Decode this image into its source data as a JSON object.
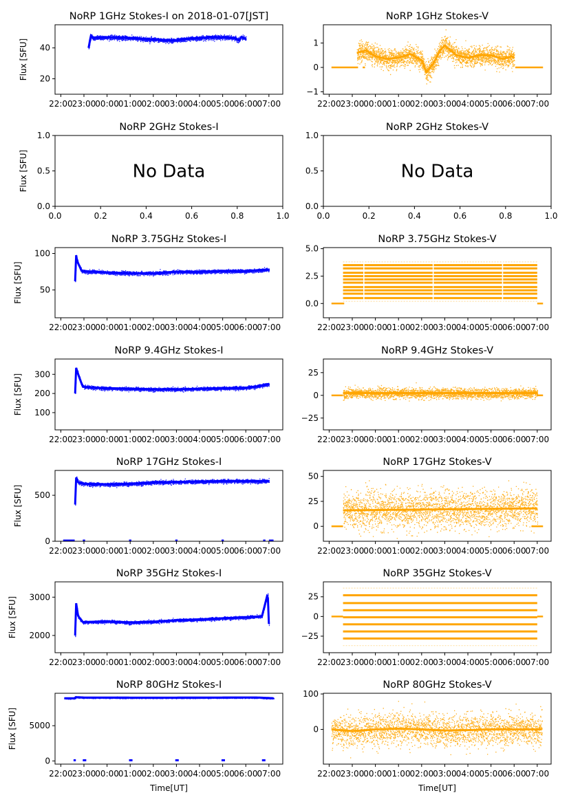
{
  "figure": {
    "xlabel_bottom": "Time[UT]",
    "colors": {
      "stokes_i": "#0000ff",
      "stokes_v": "#ffa500",
      "axes": "#000000"
    }
  },
  "chart_data": [
    {
      "id": "1ghz-i",
      "type": "scatter",
      "title": "NoRP 1GHz Stokes-I on 2018-01-07[JST]",
      "ylabel": "Flux [SFU]",
      "ylim": [
        10,
        55
      ],
      "yticks": [
        20,
        40
      ],
      "ytick_labels": [
        "20",
        "40"
      ],
      "x_ticks": [
        "22:00",
        "23:00",
        "00:00",
        "01:00",
        "02:00",
        "03:00",
        "04:00",
        "05:00",
        "06:00",
        "07:00"
      ],
      "xlim_hours": [
        -0.25,
        9.6
      ],
      "series": [
        {
          "name": "Stokes-I",
          "color": "#0000ff",
          "x_hours": [
            1.2,
            1.3,
            1.4,
            2,
            3,
            3.5,
            4,
            4.5,
            5,
            5.5,
            6,
            6.5,
            7,
            7.5,
            7.7,
            7.8,
            8
          ],
          "y": [
            40,
            48,
            46.5,
            47,
            46.5,
            46,
            45.5,
            45,
            45,
            46,
            46.5,
            47,
            47,
            46.5,
            45,
            47,
            46
          ],
          "spread": 1.2
        }
      ],
      "no_data": false
    },
    {
      "id": "1ghz-v",
      "type": "scatter",
      "title": "NoRP 1GHz Stokes-V",
      "ylabel": "",
      "ylim": [
        -1.1,
        1.75
      ],
      "yticks": [
        -1,
        0,
        1
      ],
      "ytick_labels": [
        "−1",
        "0",
        "1"
      ],
      "x_ticks": [
        "22:00",
        "23:00",
        "00:00",
        "01:00",
        "02:00",
        "03:00",
        "04:00",
        "05:00",
        "06:00",
        "07:00"
      ],
      "xlim_hours": [
        -0.25,
        9.6
      ],
      "baseline": {
        "x_hours": [
          [
            0.1,
            1.25
          ],
          [
            1.45,
            1.55
          ],
          [
            8.05,
            9.25
          ]
        ],
        "y": 0
      },
      "series": [
        {
          "name": "Stokes-V",
          "color": "#ffa500",
          "x_hours": [
            1.2,
            1.6,
            2,
            2.5,
            3,
            3.5,
            4,
            4.2,
            4.5,
            4.8,
            5,
            5.5,
            6,
            6.5,
            7,
            7.5,
            7.9,
            8
          ],
          "y": [
            0.6,
            0.7,
            0.45,
            0.35,
            0.4,
            0.55,
            0.3,
            -0.2,
            0.15,
            0.7,
            0.9,
            0.5,
            0.4,
            0.5,
            0.5,
            0.35,
            0.45,
            0.4
          ],
          "spread": 0.35
        }
      ],
      "no_data": false
    },
    {
      "id": "2ghz-i",
      "type": "scatter",
      "title": "NoRP 2GHz Stokes-I",
      "ylabel": "Flux [SFU]",
      "ylim": [
        0,
        1
      ],
      "yticks": [
        0,
        0.5,
        1
      ],
      "ytick_labels": [
        "0.0",
        "0.5",
        "1.0"
      ],
      "x_ticks": [
        "0.0",
        "0.2",
        "0.4",
        "0.6",
        "0.8",
        "1.0"
      ],
      "xlim": [
        0,
        1
      ],
      "no_data": true,
      "annotation": "No Data"
    },
    {
      "id": "2ghz-v",
      "type": "scatter",
      "title": "NoRP 2GHz Stokes-V",
      "ylabel": "",
      "ylim": [
        0,
        1
      ],
      "yticks": [
        0,
        0.5,
        1
      ],
      "ytick_labels": [
        "0.0",
        "0.5",
        "1.0"
      ],
      "x_ticks": [
        "0.0",
        "0.2",
        "0.4",
        "0.6",
        "0.8",
        "1.0"
      ],
      "xlim": [
        0,
        1
      ],
      "no_data": true,
      "annotation": "No Data"
    },
    {
      "id": "375ghz-i",
      "type": "scatter",
      "title": "NoRP 3.75GHz Stokes-I",
      "ylabel": "Flux [SFU]",
      "ylim": [
        12,
        108
      ],
      "yticks": [
        50,
        100
      ],
      "ytick_labels": [
        "50",
        "100"
      ],
      "x_ticks": [
        "22:00",
        "23:00",
        "00:00",
        "01:00",
        "02:00",
        "03:00",
        "04:00",
        "05:00",
        "06:00",
        "07:00"
      ],
      "xlim_hours": [
        -0.25,
        9.6
      ],
      "series": [
        {
          "name": "Stokes-I",
          "color": "#0000ff",
          "x_hours": [
            0.62,
            0.66,
            0.7,
            0.9,
            1.5,
            2,
            3,
            4,
            4.5,
            5,
            6,
            7,
            8,
            8.5,
            9
          ],
          "y": [
            62,
            98,
            90,
            76,
            75,
            74,
            73,
            73,
            74,
            75,
            75,
            76,
            76,
            77,
            78
          ],
          "spread": 2.2
        }
      ],
      "no_data": false
    },
    {
      "id": "375ghz-v",
      "type": "scatter",
      "title": "NoRP 3.75GHz Stokes-V",
      "ylabel": "",
      "ylim": [
        -1.3,
        5.1
      ],
      "yticks": [
        0,
        2.5,
        5
      ],
      "ytick_labels": [
        "0.0",
        "2.5",
        "5.0"
      ],
      "x_ticks": [
        "22:00",
        "23:00",
        "00:00",
        "01:00",
        "02:00",
        "03:00",
        "04:00",
        "05:00",
        "06:00",
        "07:00"
      ],
      "xlim_hours": [
        -0.25,
        9.6
      ],
      "baseline": {
        "x_hours": [
          [
            0.1,
            0.65
          ],
          [
            9.0,
            9.25
          ]
        ],
        "y": 0
      },
      "series": [
        {
          "name": "Stokes-V",
          "color": "#ffa500",
          "quantized_levels": [
            0.2,
            0.5,
            0.9,
            1.2,
            1.5,
            1.9,
            2.2,
            2.5,
            2.8,
            3.2,
            3.5,
            3.8
          ],
          "x_range_hours": [
            0.6,
            9.0
          ],
          "gaps_hours": [
            1.5,
            4.5,
            7.5
          ]
        }
      ],
      "no_data": false
    },
    {
      "id": "94ghz-i",
      "type": "scatter",
      "title": "NoRP 9.4GHz Stokes-I",
      "ylabel": "Flux [SFU]",
      "ylim": [
        10,
        380
      ],
      "yticks": [
        100,
        200,
        300
      ],
      "ytick_labels": [
        "100",
        "200",
        "300"
      ],
      "x_ticks": [
        "22:00",
        "23:00",
        "00:00",
        "01:00",
        "02:00",
        "03:00",
        "04:00",
        "05:00",
        "06:00",
        "07:00"
      ],
      "xlim_hours": [
        -0.25,
        9.6
      ],
      "series": [
        {
          "name": "Stokes-I",
          "color": "#0000ff",
          "x_hours": [
            0.62,
            0.66,
            0.75,
            0.95,
            1.5,
            2,
            3,
            4,
            5,
            6,
            7,
            8,
            8.5,
            9
          ],
          "y": [
            200,
            335,
            300,
            235,
            230,
            228,
            225,
            222,
            222,
            225,
            228,
            230,
            238,
            250
          ],
          "spread": 8
        }
      ],
      "no_data": false
    },
    {
      "id": "94ghz-v",
      "type": "scatter",
      "title": "NoRP 9.4GHz Stokes-V",
      "ylabel": "",
      "ylim": [
        -38,
        40
      ],
      "yticks": [
        -25,
        0,
        25
      ],
      "ytick_labels": [
        "−25",
        "0",
        "25"
      ],
      "x_ticks": [
        "22:00",
        "23:00",
        "00:00",
        "01:00",
        "02:00",
        "03:00",
        "04:00",
        "05:00",
        "06:00",
        "07:00"
      ],
      "xlim_hours": [
        -0.25,
        9.6
      ],
      "baseline": {
        "x_hours": [
          [
            0.1,
            0.6
          ],
          [
            9.0,
            9.25
          ]
        ],
        "y": 0
      },
      "series": [
        {
          "name": "Stokes-V",
          "color": "#ffa500",
          "x_hours": [
            0.6,
            9.0
          ],
          "y": [
            2.5,
            2.5
          ],
          "spread": 5
        }
      ],
      "no_data": false
    },
    {
      "id": "17ghz-i",
      "type": "scatter",
      "title": "NoRP 17GHz Stokes-I",
      "ylabel": "Flux [SFU]",
      "ylim": [
        0,
        770
      ],
      "yticks": [
        0,
        500
      ],
      "ytick_labels": [
        "0",
        "500"
      ],
      "x_ticks": [
        "22:00",
        "23:00",
        "00:00",
        "01:00",
        "02:00",
        "03:00",
        "04:00",
        "05:00",
        "06:00",
        "07:00"
      ],
      "xlim_hours": [
        -0.25,
        9.6
      ],
      "zero_segments_hours": [
        [
          0.1,
          0.6
        ],
        [
          0.95,
          1.05
        ],
        [
          2.95,
          3.05
        ],
        [
          4.95,
          5.05
        ],
        [
          6.95,
          7.05
        ],
        [
          8.75,
          8.85
        ],
        [
          9.0,
          9.2
        ]
      ],
      "series": [
        {
          "name": "Stokes-I",
          "color": "#0000ff",
          "x_hours": [
            0.62,
            0.65,
            0.75,
            1,
            2,
            3,
            4,
            5,
            6,
            7,
            8,
            9
          ],
          "y": [
            400,
            700,
            640,
            625,
            620,
            625,
            640,
            645,
            650,
            655,
            655,
            655
          ],
          "spread": 18
        }
      ],
      "no_data": false
    },
    {
      "id": "17ghz-v",
      "type": "scatter",
      "title": "NoRP 17GHz Stokes-V",
      "ylabel": "",
      "ylim": [
        -15,
        56
      ],
      "yticks": [
        0,
        25,
        50
      ],
      "ytick_labels": [
        "0",
        "25",
        "50"
      ],
      "x_ticks": [
        "22:00",
        "23:00",
        "00:00",
        "01:00",
        "02:00",
        "03:00",
        "04:00",
        "05:00",
        "06:00",
        "07:00"
      ],
      "xlim_hours": [
        -0.25,
        9.6
      ],
      "baseline": {
        "x_hours": [
          [
            0.1,
            0.6
          ],
          [
            8.75,
            9.25
          ]
        ],
        "y": 0
      },
      "series": [
        {
          "name": "Stokes-V",
          "color": "#ffa500",
          "x_hours": [
            0.6,
            9.0
          ],
          "y": [
            16,
            18
          ],
          "spread": 17
        }
      ],
      "no_data": false
    },
    {
      "id": "35ghz-i",
      "type": "scatter",
      "title": "NoRP 35GHz Stokes-I",
      "ylabel": "Flux [SFU]",
      "ylim": [
        1550,
        3400
      ],
      "yticks": [
        2000,
        3000
      ],
      "ytick_labels": [
        "2000",
        "3000"
      ],
      "x_ticks": [
        "22:00",
        "23:00",
        "00:00",
        "01:00",
        "02:00",
        "03:00",
        "04:00",
        "05:00",
        "06:00",
        "07:00"
      ],
      "xlim_hours": [
        -0.25,
        9.6
      ],
      "series": [
        {
          "name": "Stokes-I",
          "color": "#0000ff",
          "x_hours": [
            0.62,
            0.66,
            0.75,
            0.95,
            2,
            3,
            4,
            5,
            6,
            7,
            8,
            8.7,
            8.95,
            9.0
          ],
          "y": [
            2000,
            2850,
            2500,
            2350,
            2370,
            2340,
            2360,
            2400,
            2420,
            2450,
            2480,
            2500,
            3100,
            2300
          ],
          "spread": 35
        }
      ],
      "no_data": false
    },
    {
      "id": "35ghz-v",
      "type": "scatter",
      "title": "NoRP 35GHz Stokes-V",
      "ylabel": "",
      "ylim": [
        -46,
        44
      ],
      "yticks": [
        -25,
        0,
        25
      ],
      "ytick_labels": [
        "−25",
        "0",
        "25"
      ],
      "x_ticks": [
        "22:00",
        "23:00",
        "00:00",
        "01:00",
        "02:00",
        "03:00",
        "04:00",
        "05:00",
        "06:00",
        "07:00"
      ],
      "xlim_hours": [
        -0.25,
        9.6
      ],
      "baseline": {
        "x_hours": [
          [
            0.1,
            0.6
          ],
          [
            9.0,
            9.25
          ]
        ],
        "y": 0
      },
      "series": [
        {
          "name": "Stokes-V",
          "color": "#ffa500",
          "quantized_levels": [
            -37,
            -28,
            -19,
            -10,
            -1,
            8,
            17,
            27,
            36
          ],
          "x_range_hours": [
            0.6,
            9.0
          ]
        }
      ],
      "no_data": false
    },
    {
      "id": "80ghz-i",
      "type": "scatter",
      "title": "NoRP 80GHz Stokes-I",
      "ylabel": "Flux [SFU]",
      "ylim": [
        -450,
        9600
      ],
      "yticks": [
        0,
        5000
      ],
      "ytick_labels": [
        "0",
        "5000"
      ],
      "x_ticks": [
        "22:00",
        "23:00",
        "00:00",
        "01:00",
        "02:00",
        "03:00",
        "04:00",
        "05:00",
        "06:00",
        "07:00"
      ],
      "xlim_hours": [
        -0.25,
        9.6
      ],
      "zero_segments_hours": [
        [
          0.55,
          0.65
        ],
        [
          0.95,
          1.1
        ],
        [
          2.95,
          3.1
        ],
        [
          4.95,
          5.1
        ],
        [
          6.95,
          7.1
        ],
        [
          8.7,
          8.85
        ]
      ],
      "series": [
        {
          "name": "Stokes-I",
          "color": "#0000ff",
          "x_hours": [
            0.15,
            0.6,
            0.65,
            1,
            3,
            5,
            7,
            8.5,
            9.2
          ],
          "y": [
            8900,
            8900,
            9050,
            9000,
            8980,
            8980,
            9000,
            9000,
            8900
          ],
          "spread": 70
        }
      ],
      "no_data": false
    },
    {
      "id": "80ghz-v",
      "type": "scatter",
      "title": "NoRP 80GHz Stokes-V",
      "ylabel": "",
      "ylim": [
        -98,
        102
      ],
      "yticks": [
        0,
        100
      ],
      "ytick_labels": [
        "0",
        "100"
      ],
      "x_ticks": [
        "22:00",
        "23:00",
        "00:00",
        "01:00",
        "02:00",
        "03:00",
        "04:00",
        "05:00",
        "06:00",
        "07:00"
      ],
      "xlim_hours": [
        -0.25,
        9.6
      ],
      "series": [
        {
          "name": "Stokes-V",
          "color": "#ffa500",
          "x_hours": [
            0.1,
            1,
            2,
            3,
            4,
            5,
            6,
            7,
            8,
            9.2
          ],
          "y": [
            0,
            -5,
            0,
            2,
            0,
            -3,
            -2,
            0,
            0,
            0
          ],
          "spread": 40
        }
      ],
      "no_data": false
    }
  ]
}
